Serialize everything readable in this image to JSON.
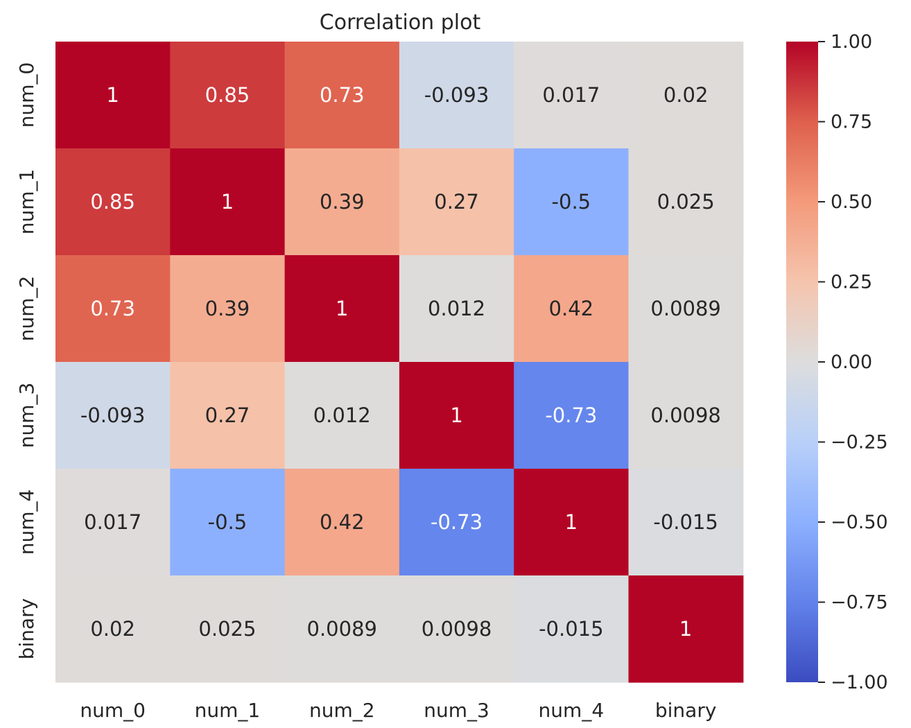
{
  "chart_data": {
    "type": "heatmap",
    "title": "Correlation plot",
    "x_categories": [
      "num_0",
      "num_1",
      "num_2",
      "num_3",
      "num_4",
      "binary"
    ],
    "y_categories": [
      "num_0",
      "num_1",
      "num_2",
      "num_3",
      "num_4",
      "binary"
    ],
    "values": [
      [
        1,
        0.85,
        0.73,
        -0.093,
        0.017,
        0.02
      ],
      [
        0.85,
        1,
        0.39,
        0.27,
        -0.5,
        0.025
      ],
      [
        0.73,
        0.39,
        1,
        0.012,
        0.42,
        0.0089
      ],
      [
        -0.093,
        0.27,
        0.012,
        1,
        -0.73,
        0.0098
      ],
      [
        0.017,
        -0.5,
        0.42,
        -0.73,
        1,
        -0.015
      ],
      [
        0.02,
        0.025,
        0.0089,
        0.0098,
        -0.015,
        1
      ]
    ],
    "cell_labels": [
      [
        "1",
        "0.85",
        "0.73",
        "-0.093",
        "0.017",
        "0.02"
      ],
      [
        "0.85",
        "1",
        "0.39",
        "0.27",
        "-0.5",
        "0.025"
      ],
      [
        "0.73",
        "0.39",
        "1",
        "0.012",
        "0.42",
        "0.0089"
      ],
      [
        "-0.093",
        "0.27",
        "0.012",
        "1",
        "-0.73",
        "0.0098"
      ],
      [
        "0.017",
        "-0.5",
        "0.42",
        "-0.73",
        "1",
        "-0.015"
      ],
      [
        "0.02",
        "0.025",
        "0.0089",
        "0.0098",
        "-0.015",
        "1"
      ]
    ],
    "colormap": "coolwarm",
    "colorbar": {
      "range": [
        -1.0,
        1.0
      ],
      "ticks": [
        1.0,
        0.75,
        0.5,
        0.25,
        0.0,
        -0.25,
        -0.5,
        -0.75,
        -1.0
      ],
      "tick_labels": [
        "1.00",
        "0.75",
        "0.50",
        "0.25",
        "0.00",
        "−0.25",
        "−0.50",
        "−0.75",
        "−1.00"
      ],
      "placement": "right"
    },
    "grid": false
  }
}
